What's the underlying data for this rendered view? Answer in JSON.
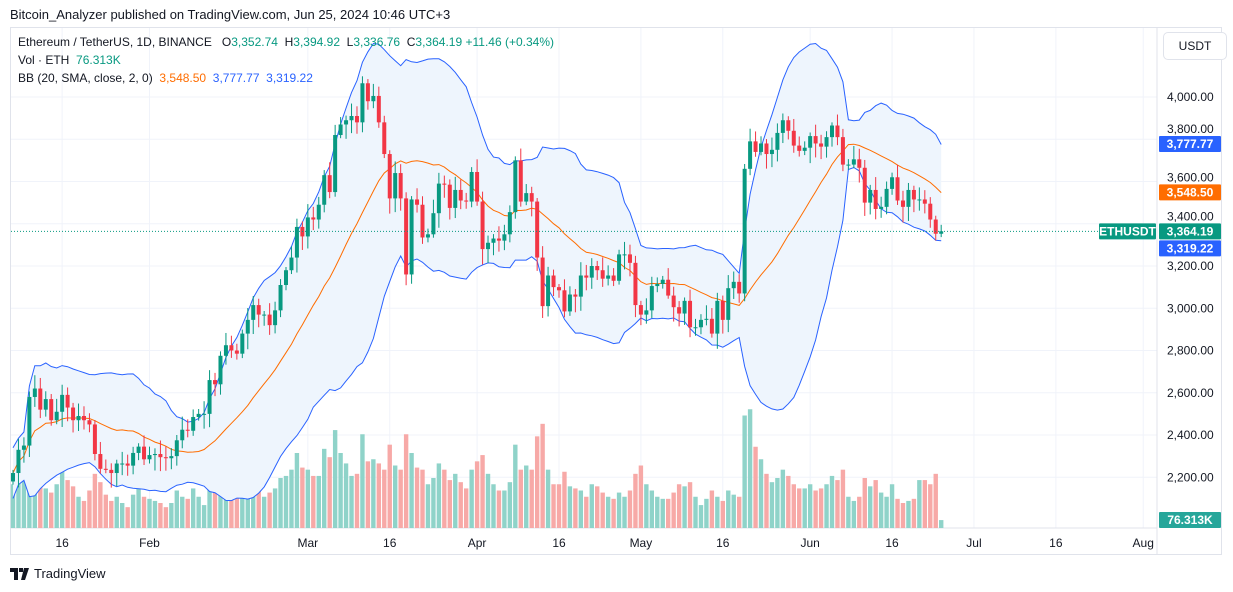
{
  "header": {
    "published": "Bitcoin_Analyzer published on TradingView.com, Jun 25, 2024 10:46 UTC+3"
  },
  "legend": {
    "symbol": "Ethereum / TetherUS, 1D, BINANCE",
    "o_label": "O",
    "o": "3,352.74",
    "h_label": "H",
    "h": "3,394.92",
    "l_label": "L",
    "l": "3,336.76",
    "c_label": "C",
    "c": "3,364.19",
    "change": "+11.46 (+0.34%)",
    "vol_label": "Vol · ETH",
    "vol": "76.313K",
    "bb_label": "BB (20, SMA, close, 2, 0)",
    "bb_basis": "3,548.50",
    "bb_upper": "3,777.77",
    "bb_lower": "3,319.22"
  },
  "axis": {
    "currency": "USDT",
    "ticker_tag": "ETHUSDT",
    "price_tag": "3,364.19",
    "upper_tag": "3,777.77",
    "basis_tag": "3,548.50",
    "lower_tag": "3,319.22",
    "volume_tag": "76.313K"
  },
  "footer": {
    "brand": "TradingView"
  },
  "colors": {
    "up": "#089981",
    "down": "#f23645",
    "vol_up": "#8fd3c9",
    "vol_down": "#f7a9a7",
    "bb_band": "#2962ff",
    "bb_basis": "#ff6d00",
    "bb_fill": "#eef5fd"
  },
  "chart_data": {
    "type": "candlestick",
    "start_date": "2024-01-07",
    "end_date": "2024-06-25",
    "last_candle": {
      "open": 3352.74,
      "high": 3394.92,
      "low": 3336.76,
      "close": 3364.19
    },
    "y_ticks": [
      "2,200.00",
      "2,400.00",
      "2,600.00",
      "2,800.00",
      "3,000.00",
      "3,200.00",
      "3,400.00",
      "3,600.00",
      "3,800.00",
      "4,000.00"
    ],
    "y_tick_values": [
      2200,
      2400,
      2600,
      2800,
      3000,
      3200,
      3400,
      3600,
      3800,
      4000
    ],
    "x_ticks": [
      {
        "label": "16",
        "date": "2024-01-16"
      },
      {
        "label": "Feb",
        "date": "2024-02-01"
      },
      {
        "label": "Mar",
        "date": "2024-03-01"
      },
      {
        "label": "16",
        "date": "2024-03-16"
      },
      {
        "label": "Apr",
        "date": "2024-04-01"
      },
      {
        "label": "16",
        "date": "2024-04-16"
      },
      {
        "label": "May",
        "date": "2024-05-01"
      },
      {
        "label": "16",
        "date": "2024-05-16"
      },
      {
        "label": "Jun",
        "date": "2024-06-01"
      },
      {
        "label": "16",
        "date": "2024-06-16"
      },
      {
        "label": "Jul",
        "date": "2024-07-01"
      },
      {
        "label": "16",
        "date": "2024-07-16"
      },
      {
        "label": "Aug",
        "date": "2024-08-01"
      }
    ],
    "closes": [
      2220,
      2330,
      2350,
      2580,
      2620,
      2520,
      2570,
      2470,
      2510,
      2590,
      2530,
      2470,
      2490,
      2470,
      2450,
      2310,
      2240,
      2235,
      2220,
      2265,
      2265,
      2255,
      2315,
      2345,
      2285,
      2305,
      2310,
      2295,
      2290,
      2300,
      2375,
      2425,
      2420,
      2485,
      2500,
      2500,
      2660,
      2640,
      2775,
      2825,
      2800,
      2785,
      2880,
      2945,
      3015,
      2970,
      2970,
      2920,
      2990,
      3110,
      3180,
      3240,
      3385,
      3340,
      3430,
      3420,
      3490,
      3630,
      3550,
      3820,
      3870,
      3890,
      3910,
      3880,
      4065,
      3980,
      4005,
      3880,
      3730,
      3520,
      3640,
      3520,
      3160,
      3515,
      3490,
      3335,
      3350,
      3450,
      3590,
      3585,
      3475,
      3560,
      3510,
      3505,
      3645,
      3505,
      3280,
      3310,
      3330,
      3320,
      3350,
      3455,
      3700,
      3505,
      3545,
      3505,
      3240,
      3010,
      3155,
      3100,
      3085,
      2985,
      3065,
      3055,
      3155,
      3145,
      3200,
      3180,
      3140,
      3155,
      3130,
      3255,
      3255,
      3215,
      3015,
      2970,
      2990,
      3105,
      3115,
      3135,
      3060,
      3005,
      2975,
      3035,
      2910,
      2910,
      2945,
      2950,
      2880,
      3035,
      2945,
      3095,
      3125,
      3070,
      3660,
      3790,
      3740,
      3780,
      3730,
      3750,
      3830,
      3890,
      3840,
      3770,
      3745,
      3760,
      3815,
      3780,
      3765,
      3810,
      3865,
      3810,
      3680,
      3680,
      3705,
      3665,
      3500,
      3560,
      3470,
      3480,
      3565,
      3620,
      3510,
      3480,
      3560,
      3515,
      3515,
      3495,
      3420,
      3352.74,
      3364.19
    ],
    "volumes_k": [
      420,
      560,
      640,
      880,
      720,
      560,
      380,
      340,
      420,
      560,
      460,
      400,
      300,
      260,
      360,
      520,
      440,
      320,
      260,
      300,
      240,
      200,
      320,
      380,
      300,
      280,
      260,
      240,
      200,
      240,
      360,
      300,
      280,
      380,
      300,
      220,
      520,
      400,
      560,
      540,
      420,
      320,
      480,
      440,
      520,
      400,
      300,
      340,
      380,
      480,
      500,
      560,
      720,
      580,
      560,
      500,
      500,
      760,
      680,
      940,
      720,
      620,
      500,
      520,
      900,
      640,
      660,
      620,
      560,
      800,
      600,
      560,
      900,
      720,
      580,
      560,
      420,
      480,
      620,
      560,
      460,
      520,
      440,
      380,
      560,
      640,
      700,
      520,
      420,
      360,
      360,
      440,
      800,
      560,
      600,
      560,
      880,
      1000,
      560,
      420,
      420,
      540,
      400,
      380,
      360,
      300,
      420,
      400,
      340,
      300,
      280,
      340,
      300,
      360,
      520,
      600,
      420,
      360,
      300,
      280,
      280,
      340,
      420,
      400,
      440,
      300,
      220,
      280,
      360,
      300,
      260,
      360,
      320,
      300,
      1080,
      1140,
      780,
      660,
      520,
      440,
      480,
      560,
      500,
      420,
      380,
      380,
      420,
      360,
      380,
      420,
      500,
      460,
      560,
      300,
      260,
      300,
      480,
      400,
      460,
      340,
      300,
      420,
      280,
      240,
      260,
      280,
      460,
      460,
      420,
      520,
      76
    ]
  }
}
